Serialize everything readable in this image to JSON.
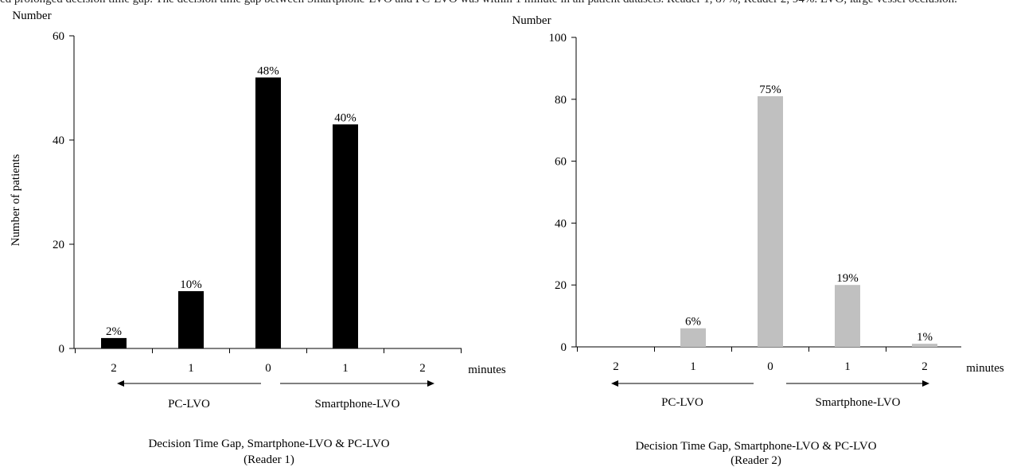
{
  "top_caption": "ed prolonged decision time gap. The decision time gap between Smartphone-LVO and PC-LVO was within 1 minute in all patient datasets. Reader 1, 87%; Reader 2, 94%. LVO, large vessel occlusion.",
  "chart_data": [
    {
      "type": "bar",
      "title": "",
      "caption_line1": "Decision Time Gap, Smartphone-LVO & PC-LVO",
      "caption_line2": "(Reader 1)",
      "y_top_label": "Number",
      "ylabel": "Number of patients",
      "xunit": "minutes",
      "ylim": [
        0,
        60
      ],
      "yticks": [
        0,
        20,
        40,
        60
      ],
      "bar_color": "#000000",
      "grid": false,
      "categories": [
        "2",
        "1",
        "0",
        "1",
        "2"
      ],
      "values": [
        2,
        11,
        52,
        43,
        0
      ],
      "data_labels": [
        "2%",
        "10%",
        "48%",
        "40%",
        ""
      ],
      "arrows": [
        {
          "direction": "left",
          "label": "PC-LVO"
        },
        {
          "direction": "right",
          "label": "Smartphone-LVO"
        }
      ]
    },
    {
      "type": "bar",
      "title": "",
      "caption_line1": "Decision Time Gap, Smartphone-LVO & PC-LVO",
      "caption_line2": "(Reader 2)",
      "y_top_label": "Number",
      "ylabel": "",
      "xunit": "minutes",
      "ylim": [
        0,
        100
      ],
      "yticks": [
        0,
        20,
        40,
        60,
        80,
        100
      ],
      "bar_color": "#c0c0c0",
      "grid": false,
      "categories": [
        "2",
        "1",
        "0",
        "1",
        "2"
      ],
      "values": [
        0,
        6,
        81,
        20,
        1
      ],
      "data_labels": [
        "",
        "6%",
        "75%",
        "19%",
        "1%"
      ],
      "arrows": [
        {
          "direction": "left",
          "label": "PC-LVO"
        },
        {
          "direction": "right",
          "label": "Smartphone-LVO"
        }
      ]
    }
  ]
}
